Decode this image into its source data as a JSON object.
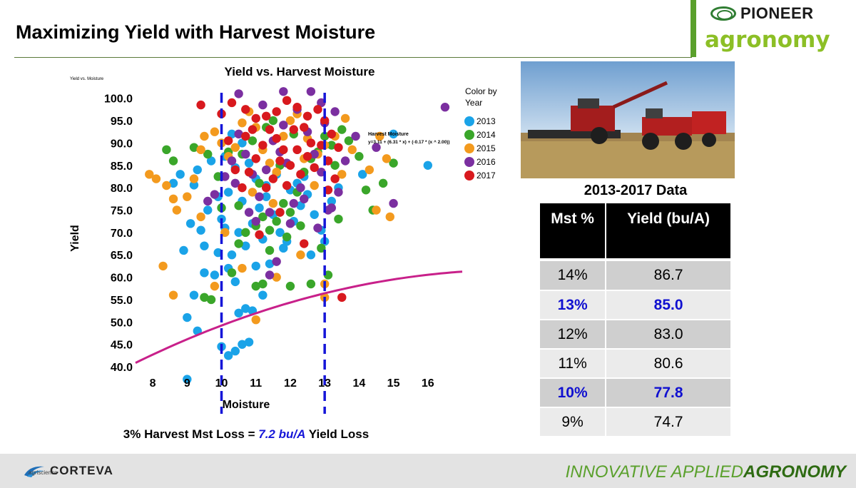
{
  "header": {
    "title": "Maximizing Yield with Harvest Moisture",
    "logo_brand": "PIONEER",
    "logo_sub": "agronomy"
  },
  "chart_data": {
    "type": "scatter",
    "title": "Yield vs. Harvest Moisture",
    "small_caption": "Yield vs. Moisture",
    "xlabel": "Moisture",
    "ylabel": "Yield",
    "xlim": [
      7.5,
      17
    ],
    "ylim": [
      36.5,
      102.5
    ],
    "x_ticks": [
      8,
      9,
      10,
      11,
      12,
      13,
      14,
      15,
      16
    ],
    "y_ticks": [
      40.0,
      45.0,
      50.0,
      55.0,
      60.0,
      65.0,
      70.0,
      75.0,
      80.0,
      85.0,
      90.0,
      95.0,
      100.0
    ],
    "legend": {
      "title": "Color by Year",
      "placement": "right",
      "entries": [
        {
          "label": "2013",
          "color": "#1aa3e8"
        },
        {
          "label": "2014",
          "color": "#3aa62a"
        },
        {
          "label": "2015",
          "color": "#f39a1e"
        },
        {
          "label": "2016",
          "color": "#7b2fa0"
        },
        {
          "label": "2017",
          "color": "#d8191e"
        }
      ]
    },
    "fit_line": {
      "label": "Harvest Moisture",
      "equation": "y=3.11 + (6.31 * x) + (-0.17 * (x ^ 2.00))",
      "color": "#c8208a",
      "a": 3.11,
      "b": 6.31,
      "c": -0.17
    },
    "reference_lines": [
      10,
      13
    ],
    "reference_color": "#1515d8",
    "caption_parts": [
      "3% Harvest Mst Loss = ",
      "7.2 bu/A",
      " Yield Loss"
    ],
    "series": [
      {
        "name": "2013",
        "points": [
          [
            9.0,
            37.2
          ],
          [
            9.3,
            48.0
          ],
          [
            9.0,
            51.0
          ],
          [
            9.2,
            56.0
          ],
          [
            8.9,
            66.0
          ],
          [
            9.5,
            61.0
          ],
          [
            9.8,
            60.5
          ],
          [
            10.2,
            62.0
          ],
          [
            10.3,
            65.0
          ],
          [
            9.4,
            70.5
          ],
          [
            9.1,
            72.0
          ],
          [
            9.6,
            75.0
          ],
          [
            9.9,
            78.0
          ],
          [
            9.2,
            80.6
          ],
          [
            8.6,
            81.0
          ],
          [
            8.8,
            83.0
          ],
          [
            9.3,
            84.0
          ],
          [
            9.7,
            86.0
          ],
          [
            10.1,
            87.0
          ],
          [
            10.4,
            84.5
          ],
          [
            10.2,
            79.0
          ],
          [
            10.0,
            73.0
          ],
          [
            10.5,
            70.0
          ],
          [
            10.7,
            67.0
          ],
          [
            10.9,
            72.0
          ],
          [
            11.1,
            75.5
          ],
          [
            11.3,
            78.0
          ],
          [
            11.0,
            82.0
          ],
          [
            10.6,
            90.0
          ],
          [
            10.3,
            92.0
          ],
          [
            10.8,
            85.5
          ],
          [
            11.5,
            74.0
          ],
          [
            11.7,
            70.0
          ],
          [
            11.9,
            68.0
          ],
          [
            12.1,
            72.5
          ],
          [
            12.3,
            76.0
          ],
          [
            12.5,
            78.5
          ],
          [
            12.7,
            74.0
          ],
          [
            12.9,
            70.5
          ],
          [
            13.0,
            68.0
          ],
          [
            12.6,
            65.0
          ],
          [
            12.2,
            81.0
          ],
          [
            11.6,
            83.0
          ],
          [
            10.0,
            44.5
          ],
          [
            10.2,
            42.5
          ],
          [
            10.4,
            43.5
          ],
          [
            10.6,
            45.0
          ],
          [
            10.8,
            45.5
          ],
          [
            10.5,
            52.0
          ],
          [
            10.7,
            53.0
          ],
          [
            10.9,
            52.5
          ],
          [
            11.2,
            56.0
          ],
          [
            10.4,
            59.0
          ],
          [
            11.0,
            62.5
          ],
          [
            11.4,
            63.0
          ],
          [
            11.8,
            66.5
          ],
          [
            15.0,
            92.0
          ],
          [
            16.0,
            85.0
          ],
          [
            14.1,
            83.0
          ],
          [
            13.4,
            80.0
          ],
          [
            12.0,
            79.5
          ],
          [
            11.2,
            68.5
          ],
          [
            10.1,
            71.0
          ],
          [
            9.5,
            67.0
          ],
          [
            9.9,
            65.5
          ],
          [
            10.6,
            77.0
          ],
          [
            11.3,
            80.5
          ],
          [
            12.4,
            82.5
          ],
          [
            13.2,
            77.0
          ]
        ]
      },
      {
        "name": "2014",
        "points": [
          [
            8.4,
            88.5
          ],
          [
            8.6,
            86.0
          ],
          [
            9.2,
            89.0
          ],
          [
            9.6,
            87.5
          ],
          [
            9.9,
            82.5
          ],
          [
            9.5,
            55.5
          ],
          [
            9.7,
            55.0
          ],
          [
            10.3,
            61.0
          ],
          [
            10.5,
            67.5
          ],
          [
            10.7,
            70.0
          ],
          [
            11.0,
            71.5
          ],
          [
            11.2,
            73.5
          ],
          [
            11.4,
            70.5
          ],
          [
            11.6,
            72.5
          ],
          [
            11.8,
            76.5
          ],
          [
            12.0,
            74.5
          ],
          [
            12.2,
            79.0
          ],
          [
            12.4,
            83.5
          ],
          [
            12.6,
            86.5
          ],
          [
            12.8,
            88.0
          ],
          [
            13.0,
            91.5
          ],
          [
            13.2,
            89.5
          ],
          [
            13.5,
            93.0
          ],
          [
            13.7,
            90.5
          ],
          [
            14.0,
            87.0
          ],
          [
            14.4,
            75.0
          ],
          [
            14.7,
            81.0
          ],
          [
            15.0,
            85.5
          ],
          [
            11.0,
            58.0
          ],
          [
            11.2,
            58.5
          ],
          [
            12.0,
            58.0
          ],
          [
            12.6,
            58.5
          ],
          [
            13.1,
            60.5
          ],
          [
            11.3,
            93.5
          ],
          [
            11.5,
            95.0
          ],
          [
            10.9,
            90.5
          ],
          [
            10.6,
            87.5
          ],
          [
            11.1,
            81.0
          ],
          [
            10.5,
            76.0
          ],
          [
            10.0,
            75.5
          ],
          [
            11.9,
            69.0
          ],
          [
            12.3,
            71.5
          ],
          [
            12.9,
            66.5
          ],
          [
            13.4,
            73.0
          ],
          [
            14.2,
            79.5
          ],
          [
            11.7,
            85.0
          ],
          [
            12.1,
            92.0
          ],
          [
            13.3,
            85.0
          ],
          [
            10.2,
            88.0
          ],
          [
            11.4,
            66.0
          ]
        ]
      },
      {
        "name": "2015",
        "points": [
          [
            7.9,
            83.0
          ],
          [
            8.1,
            82.0
          ],
          [
            8.4,
            80.5
          ],
          [
            8.6,
            77.5
          ],
          [
            8.3,
            62.5
          ],
          [
            8.6,
            56.0
          ],
          [
            9.2,
            82.0
          ],
          [
            9.4,
            88.5
          ],
          [
            9.5,
            91.5
          ],
          [
            9.8,
            92.5
          ],
          [
            10.0,
            90.0
          ],
          [
            10.2,
            87.0
          ],
          [
            10.4,
            89.0
          ],
          [
            10.6,
            94.5
          ],
          [
            10.8,
            97.0
          ],
          [
            11.0,
            93.5
          ],
          [
            11.2,
            88.5
          ],
          [
            11.4,
            85.5
          ],
          [
            11.6,
            83.5
          ],
          [
            11.8,
            91.5
          ],
          [
            12.0,
            95.0
          ],
          [
            12.2,
            96.5
          ],
          [
            12.5,
            91.0
          ],
          [
            12.8,
            87.5
          ],
          [
            13.0,
            89.5
          ],
          [
            13.3,
            91.5
          ],
          [
            13.6,
            95.5
          ],
          [
            13.8,
            88.5
          ],
          [
            14.3,
            84.0
          ],
          [
            14.6,
            91.5
          ],
          [
            14.8,
            86.5
          ],
          [
            14.9,
            73.5
          ],
          [
            14.5,
            75.0
          ],
          [
            13.0,
            55.5
          ],
          [
            13.0,
            58.5
          ],
          [
            12.3,
            65.0
          ],
          [
            11.6,
            60.0
          ],
          [
            11.0,
            50.5
          ],
          [
            10.6,
            62.0
          ],
          [
            9.8,
            58.0
          ],
          [
            9.0,
            78.0
          ],
          [
            8.7,
            75.0
          ],
          [
            9.4,
            73.5
          ],
          [
            10.1,
            70.0
          ],
          [
            10.9,
            79.0
          ],
          [
            11.5,
            76.5
          ],
          [
            12.7,
            80.5
          ],
          [
            13.5,
            83.0
          ],
          [
            12.4,
            86.5
          ]
        ]
      },
      {
        "name": "2016",
        "points": [
          [
            10.5,
            101.0
          ],
          [
            11.2,
            98.5
          ],
          [
            11.8,
            101.5
          ],
          [
            12.6,
            101.5
          ],
          [
            12.9,
            99.0
          ],
          [
            13.3,
            97.0
          ],
          [
            16.5,
            98.0
          ],
          [
            15.0,
            76.5
          ],
          [
            14.5,
            89.0
          ],
          [
            13.9,
            91.5
          ],
          [
            13.6,
            86.0
          ],
          [
            13.4,
            79.0
          ],
          [
            13.2,
            75.5
          ],
          [
            12.9,
            83.5
          ],
          [
            12.7,
            87.5
          ],
          [
            12.5,
            92.5
          ],
          [
            12.3,
            80.0
          ],
          [
            12.1,
            76.5
          ],
          [
            11.9,
            85.5
          ],
          [
            11.7,
            88.0
          ],
          [
            11.5,
            90.5
          ],
          [
            11.3,
            84.0
          ],
          [
            11.1,
            78.0
          ],
          [
            10.9,
            83.0
          ],
          [
            10.7,
            87.5
          ],
          [
            10.5,
            92.0
          ],
          [
            10.3,
            86.0
          ],
          [
            10.1,
            82.5
          ],
          [
            9.8,
            78.5
          ],
          [
            9.6,
            77.0
          ],
          [
            11.0,
            72.5
          ],
          [
            11.4,
            74.5
          ],
          [
            12.0,
            72.0
          ],
          [
            12.4,
            77.5
          ],
          [
            12.8,
            71.0
          ],
          [
            13.1,
            75.0
          ],
          [
            11.6,
            63.5
          ],
          [
            11.4,
            60.5
          ],
          [
            11.8,
            94.0
          ],
          [
            12.2,
            97.5
          ],
          [
            13.0,
            94.5
          ],
          [
            10.8,
            74.5
          ],
          [
            10.4,
            81.0
          ]
        ]
      },
      {
        "name": "2017",
        "points": [
          [
            9.4,
            98.5
          ],
          [
            10.0,
            96.5
          ],
          [
            10.3,
            99.0
          ],
          [
            10.7,
            97.5
          ],
          [
            11.0,
            95.5
          ],
          [
            11.3,
            96.0
          ],
          [
            11.6,
            97.0
          ],
          [
            11.9,
            99.5
          ],
          [
            12.2,
            98.0
          ],
          [
            12.5,
            96.0
          ],
          [
            12.8,
            97.5
          ],
          [
            13.0,
            95.0
          ],
          [
            13.2,
            92.0
          ],
          [
            13.4,
            89.0
          ],
          [
            13.1,
            86.0
          ],
          [
            12.9,
            89.5
          ],
          [
            12.6,
            90.0
          ],
          [
            12.4,
            93.5
          ],
          [
            12.2,
            88.5
          ],
          [
            12.0,
            85.0
          ],
          [
            11.8,
            88.5
          ],
          [
            11.6,
            91.0
          ],
          [
            11.4,
            93.0
          ],
          [
            11.2,
            89.5
          ],
          [
            11.0,
            86.5
          ],
          [
            10.8,
            83.5
          ],
          [
            10.6,
            80.0
          ],
          [
            10.4,
            84.0
          ],
          [
            10.2,
            90.5
          ],
          [
            11.5,
            82.0
          ],
          [
            11.9,
            80.5
          ],
          [
            12.3,
            83.0
          ],
          [
            12.7,
            84.5
          ],
          [
            13.3,
            82.0
          ],
          [
            13.5,
            55.5
          ],
          [
            12.4,
            67.5
          ],
          [
            11.7,
            74.5
          ],
          [
            11.1,
            69.5
          ],
          [
            10.7,
            91.5
          ],
          [
            11.3,
            80.0
          ],
          [
            12.1,
            93.0
          ],
          [
            12.5,
            87.0
          ],
          [
            13.1,
            79.5
          ],
          [
            10.9,
            93.0
          ],
          [
            11.7,
            86.0
          ]
        ]
      }
    ]
  },
  "table": {
    "title": "2013-2017 Data",
    "headers": [
      "Mst %",
      "Yield (bu/A)"
    ],
    "rows": [
      {
        "mst": "14%",
        "yield": "86.7"
      },
      {
        "mst": "13%",
        "yield": "85.0"
      },
      {
        "mst": "12%",
        "yield": "83.0"
      },
      {
        "mst": "11%",
        "yield": "80.6"
      },
      {
        "mst": "10%",
        "yield": "77.8"
      },
      {
        "mst": "9%",
        "yield": "74.7"
      }
    ]
  },
  "footer": {
    "brand": "CORTEVA",
    "brand_sub": "agriscience",
    "tagline_a": "INNOVATIVE ",
    "tagline_b": "APPLIED",
    "tagline_c": "AGRONOMY"
  }
}
